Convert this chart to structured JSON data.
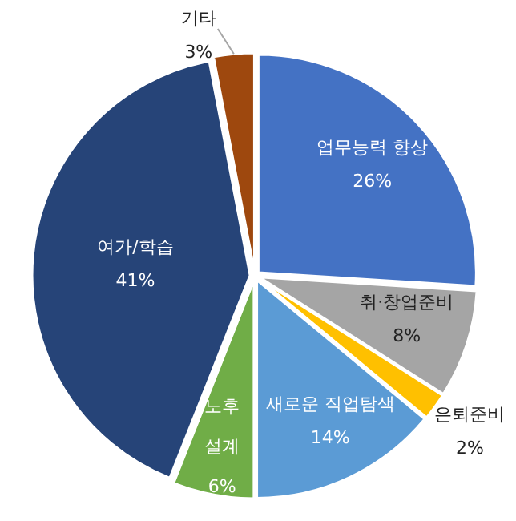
{
  "chart_data": {
    "type": "pie",
    "categories": [
      "업무능력 향상",
      "취·창업준비",
      "은퇴준비",
      "새로운 직업탐색",
      "노후 설계",
      "여가/학습",
      "기타"
    ],
    "values": [
      26,
      8,
      2,
      14,
      6,
      41,
      3
    ],
    "value_labels": [
      "26%",
      "8%",
      "2%",
      "14%",
      "6%",
      "41%",
      "3%"
    ],
    "colors": [
      "#4472c4",
      "#a5a5a5",
      "#ffc000",
      "#5b9bd5",
      "#70ad47",
      "#264478",
      "#9e480e"
    ]
  }
}
